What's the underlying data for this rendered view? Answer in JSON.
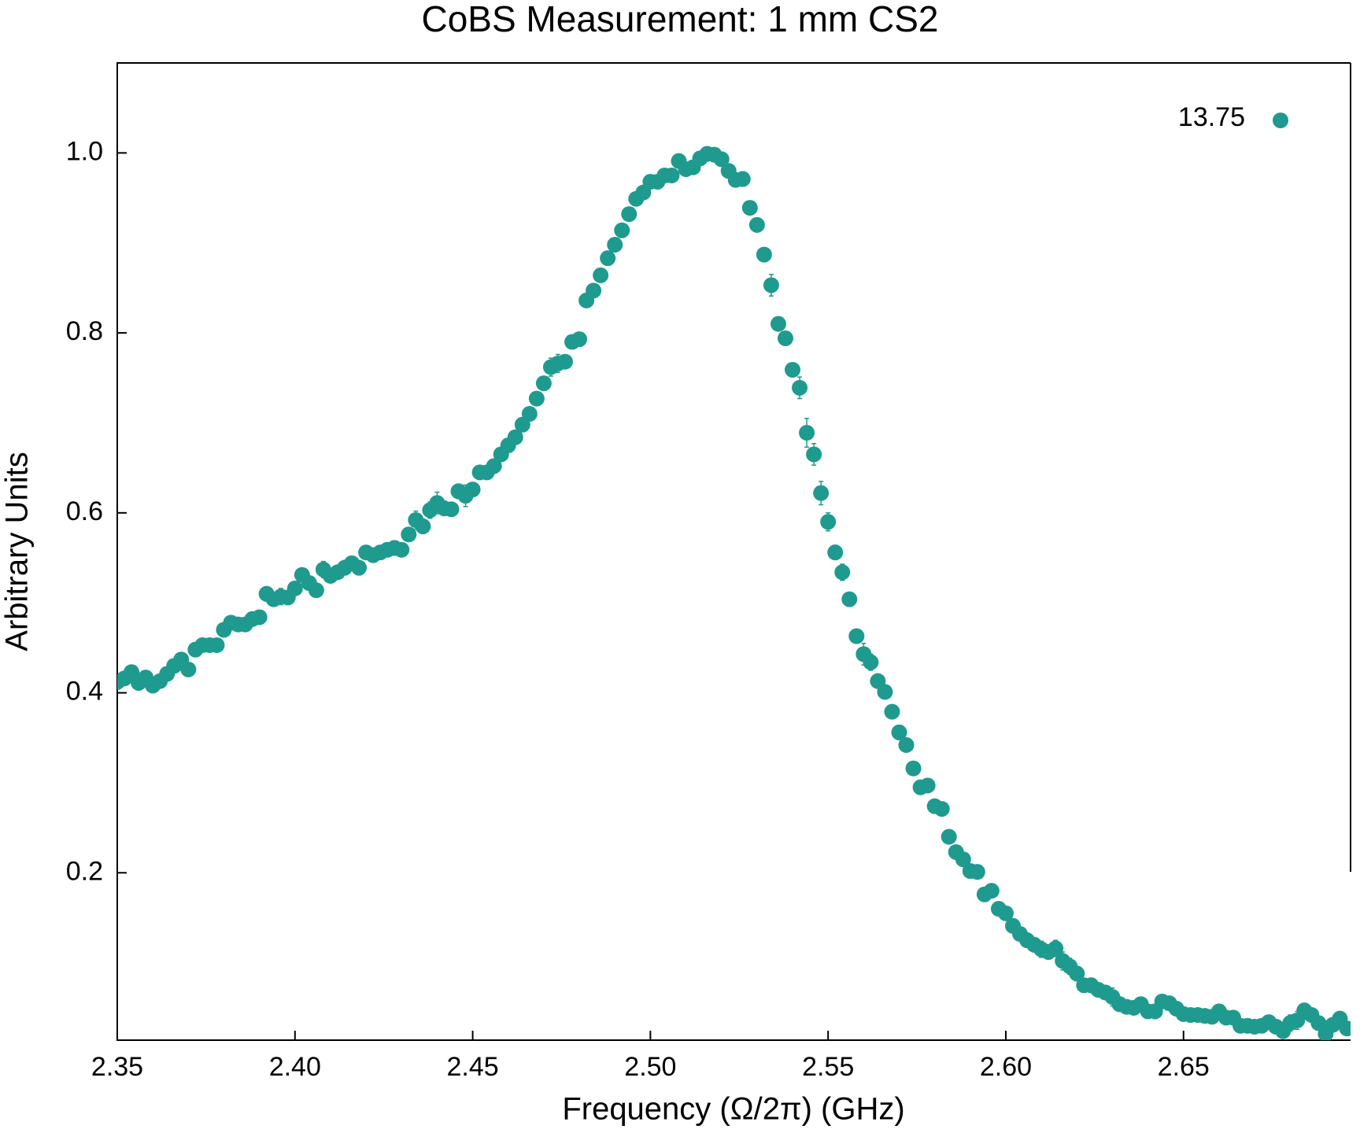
{
  "chart_data": {
    "type": "scatter",
    "title": "CoBS Measurement: 1 mm CS2",
    "x_label": "Frequency (Ω/2π) (GHz)",
    "y_label": "Arbitrary Units",
    "xlim": [
      2.35,
      2.697
    ],
    "ylim": [
      0.014,
      1.1
    ],
    "xticks": [
      2.35,
      {
        "value": 2.4,
        "label": "2.40"
      },
      2.45,
      {
        "value": 2.5,
        "label": "2.50"
      },
      2.55,
      {
        "value": 2.6,
        "label": "2.60"
      },
      2.65
    ],
    "yticks": [
      0.2,
      0.4,
      0.6,
      0.8,
      {
        "value": 1,
        "label": "1.0"
      }
    ],
    "legend": "upper right",
    "x": [
      2.35,
      2.352,
      2.354,
      2.356,
      2.358,
      2.36,
      2.362,
      2.364,
      2.366,
      2.368,
      2.37,
      2.372,
      2.374,
      2.376,
      2.378,
      2.38,
      2.382,
      2.384,
      2.386,
      2.388,
      2.39,
      2.392,
      2.394,
      2.396,
      2.398,
      2.4,
      2.402,
      2.404,
      2.406,
      2.408,
      2.41,
      2.412,
      2.414,
      2.416,
      2.418,
      2.42,
      2.422,
      2.424,
      2.426,
      2.428,
      2.43,
      2.432,
      2.434,
      2.436,
      2.438,
      2.44,
      2.442,
      2.444,
      2.446,
      2.448,
      2.45,
      2.452,
      2.454,
      2.456,
      2.458,
      2.46,
      2.462,
      2.464,
      2.466,
      2.468,
      2.47,
      2.472,
      2.474,
      2.476,
      2.478,
      2.48,
      2.482,
      2.484,
      2.486,
      2.488,
      2.49,
      2.492,
      2.494,
      2.496,
      2.498,
      2.5,
      2.502,
      2.504,
      2.506,
      2.508,
      2.51,
      2.512,
      2.514,
      2.516,
      2.518,
      2.52,
      2.522,
      2.524,
      2.526,
      2.528,
      2.53,
      2.532,
      2.534,
      2.536,
      2.538,
      2.54,
      2.542,
      2.544,
      2.546,
      2.548,
      2.55,
      2.552,
      2.554,
      2.556,
      2.558,
      2.56,
      2.562,
      2.564,
      2.566,
      2.568,
      2.57,
      2.572,
      2.574,
      2.576,
      2.578,
      2.58,
      2.582,
      2.584,
      2.586,
      2.588,
      2.59,
      2.592,
      2.594,
      2.596,
      2.598,
      2.6,
      2.602,
      2.604,
      2.606,
      2.608,
      2.61,
      2.612,
      2.614,
      2.616,
      2.618,
      2.62,
      2.622,
      2.624,
      2.626,
      2.628,
      2.63,
      2.632,
      2.634,
      2.636,
      2.638,
      2.64,
      2.642,
      2.644,
      2.646,
      2.648,
      2.65,
      2.652,
      2.654,
      2.656,
      2.658,
      2.66,
      2.662,
      2.664,
      2.666,
      2.668,
      2.67,
      2.672,
      2.674,
      2.676,
      2.678,
      2.68,
      2.682,
      2.684,
      2.686,
      2.688,
      2.69,
      2.692,
      2.694,
      2.696,
      2.698
    ],
    "series": [
      {
        "name": "13.75",
        "color": "#1f9a8f",
        "values": [
          0.412,
          0.416,
          0.423,
          0.411,
          0.417,
          0.408,
          0.413,
          0.421,
          0.43,
          0.437,
          0.426,
          0.448,
          0.453,
          0.453,
          0.453,
          0.47,
          0.478,
          0.476,
          0.476,
          0.482,
          0.484,
          0.51,
          0.504,
          0.507,
          0.506,
          0.516,
          0.531,
          0.522,
          0.514,
          0.537,
          0.53,
          0.534,
          0.539,
          0.544,
          0.539,
          0.556,
          0.553,
          0.556,
          0.559,
          0.561,
          0.559,
          0.576,
          0.592,
          0.585,
          0.603,
          0.611,
          0.605,
          0.604,
          0.624,
          0.619,
          0.626,
          0.645,
          0.645,
          0.652,
          0.665,
          0.675,
          0.684,
          0.698,
          0.71,
          0.727,
          0.744,
          0.762,
          0.766,
          0.768,
          0.79,
          0.793,
          0.836,
          0.847,
          0.864,
          0.883,
          0.898,
          0.914,
          0.932,
          0.949,
          0.956,
          0.968,
          0.968,
          0.975,
          0.975,
          0.991,
          0.982,
          0.984,
          0.994,
          0.999,
          0.998,
          0.993,
          0.98,
          0.97,
          0.971,
          0.939,
          0.92,
          0.887,
          0.853,
          0.81,
          0.794,
          0.759,
          0.739,
          0.689,
          0.665,
          0.622,
          0.59,
          0.556,
          0.534,
          0.504,
          0.463,
          0.443,
          0.434,
          0.413,
          0.401,
          0.379,
          0.356,
          0.342,
          0.316,
          0.295,
          0.297,
          0.274,
          0.271,
          0.24,
          0.223,
          0.215,
          0.202,
          0.201,
          0.176,
          0.18,
          0.16,
          0.155,
          0.141,
          0.132,
          0.125,
          0.12,
          0.115,
          0.112,
          0.116,
          0.102,
          0.096,
          0.088,
          0.075,
          0.075,
          0.07,
          0.067,
          0.062,
          0.054,
          0.051,
          0.05,
          0.054,
          0.046,
          0.046,
          0.057,
          0.055,
          0.049,
          0.043,
          0.042,
          0.042,
          0.041,
          0.04,
          0.046,
          0.039,
          0.039,
          0.03,
          0.03,
          0.029,
          0.03,
          0.034,
          0.029,
          0.024,
          0.033,
          0.036,
          0.047,
          0.042,
          0.033,
          0.021,
          0.031,
          0.038,
          0.027
        ],
        "errors": [
          0.004,
          0.004,
          0.005,
          0.004,
          0.004,
          0.005,
          0.004,
          0.004,
          0.005,
          0.006,
          0.004,
          0.005,
          0.004,
          0.004,
          0.004,
          0.005,
          0.004,
          0.005,
          0.006,
          0.005,
          0.004,
          0.008,
          0.006,
          0.009,
          0.006,
          0.005,
          0.006,
          0.005,
          0.005,
          0.009,
          0.005,
          0.007,
          0.008,
          0.007,
          0.008,
          0.006,
          0.006,
          0.006,
          0.006,
          0.008,
          0.006,
          0.006,
          0.01,
          0.008,
          0.009,
          0.012,
          0.008,
          0.006,
          0.008,
          0.012,
          0.007,
          0.005,
          0.006,
          0.006,
          0.006,
          0.005,
          0.006,
          0.007,
          0.007,
          0.006,
          0.006,
          0.01,
          0.01,
          0.007,
          0.005,
          0.006,
          0.005,
          0.005,
          0.005,
          0.005,
          0.005,
          0.005,
          0.005,
          0.005,
          0.005,
          0.005,
          0.005,
          0.006,
          0.006,
          0.005,
          0.005,
          0.005,
          0.005,
          0.004,
          0.005,
          0.005,
          0.006,
          0.006,
          0.008,
          0.005,
          0.005,
          0.006,
          0.012,
          0.007,
          0.005,
          0.007,
          0.012,
          0.016,
          0.012,
          0.013,
          0.01,
          0.008,
          0.009,
          0.007,
          0.007,
          0.012,
          0.009,
          0.008,
          0.007,
          0.007,
          0.008,
          0.006,
          0.006,
          0.005,
          0.005,
          0.005,
          0.005,
          0.005,
          0.005,
          0.006,
          0.007,
          0.005,
          0.006,
          0.005,
          0.005,
          0.006,
          0.007,
          0.007,
          0.008,
          0.008,
          0.009,
          0.008,
          0.009,
          0.01,
          0.009,
          0.008,
          0.006,
          0.008,
          0.007,
          0.007,
          0.01,
          0.008,
          0.006,
          0.007,
          0.006,
          0.007,
          0.008,
          0.006,
          0.006,
          0.006,
          0.005,
          0.005,
          0.006,
          0.005,
          0.005,
          0.006,
          0.005,
          0.005,
          0.007,
          0.006,
          0.005,
          0.005,
          0.005,
          0.006,
          0.007,
          0.009,
          0.01,
          0.008,
          0.006,
          0.006,
          0.007,
          0.006,
          0.006
        ]
      }
    ]
  }
}
